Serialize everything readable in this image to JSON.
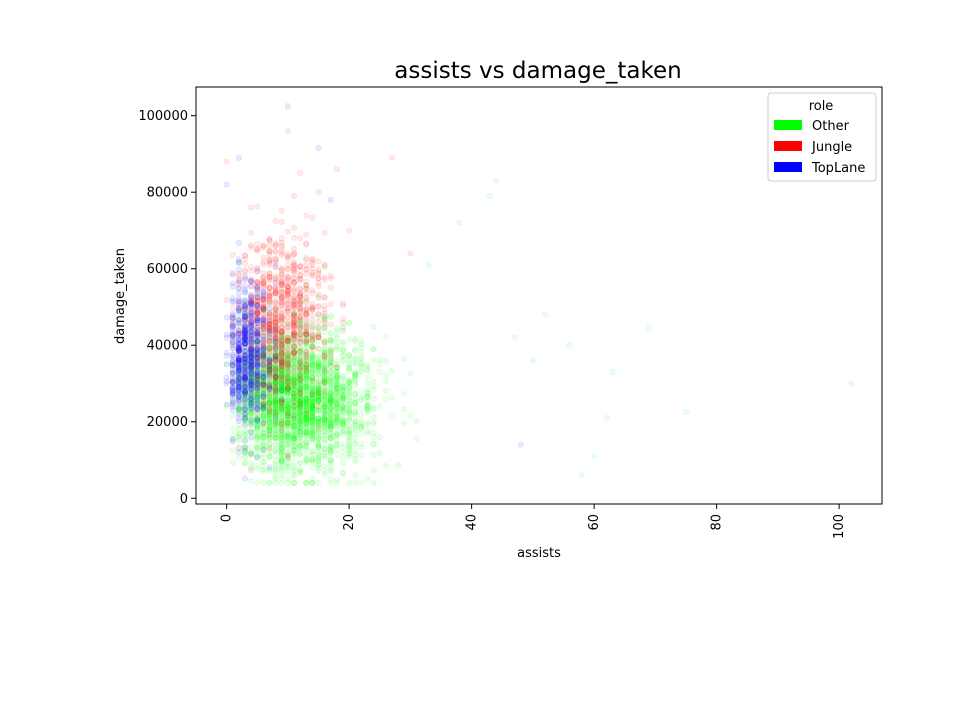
{
  "chart_data": {
    "type": "scatter",
    "title": "assists vs damage_taken",
    "xlabel": "assists",
    "ylabel": "damage_taken",
    "xlim": [
      -5,
      107
    ],
    "ylim": [
      -1500,
      107500
    ],
    "x_ticks": [
      0,
      20,
      40,
      60,
      80,
      100
    ],
    "y_ticks": [
      0,
      20000,
      40000,
      60000,
      80000,
      100000
    ],
    "x_tick_labels": [
      "0",
      "20",
      "40",
      "60",
      "80",
      "100"
    ],
    "y_tick_labels": [
      "0",
      "20000",
      "40000",
      "60000",
      "80000",
      "100000"
    ],
    "grid": false,
    "point_alpha": 0.08,
    "legend": {
      "title": "role",
      "placement": "top-right",
      "entries": [
        {
          "name": "Other",
          "color": "#00ff00"
        },
        {
          "name": "Jungle",
          "color": "#ff0000"
        },
        {
          "name": "TopLane",
          "color": "#0000ff"
        }
      ]
    },
    "series": [
      {
        "name": "Other",
        "color": "#00ff00",
        "distribution": {
          "x_center": 14,
          "x_spread": 11,
          "x_max": 75,
          "y_center": 26000,
          "y_spread": 9000
        },
        "points": [
          [
            69,
            44500
          ],
          [
            75,
            22500
          ],
          [
            102,
            30000
          ],
          [
            63,
            33000
          ],
          [
            58,
            6000
          ],
          [
            60,
            11000
          ],
          [
            52,
            48000
          ],
          [
            47,
            42000
          ],
          [
            43,
            79000
          ],
          [
            44,
            83000
          ],
          [
            38,
            72000
          ],
          [
            56,
            40000
          ],
          [
            62,
            21000
          ],
          [
            50,
            36000
          ],
          [
            33,
            61000
          ]
        ]
      },
      {
        "name": "Jungle",
        "color": "#ff0000",
        "distribution": {
          "x_center": 11,
          "x_spread": 6,
          "x_max": 45,
          "y_center": 47000,
          "y_spread": 11000
        },
        "points": [
          [
            0,
            88000
          ],
          [
            10,
            96000
          ],
          [
            18,
            86000
          ],
          [
            27,
            89000
          ],
          [
            15,
            80000
          ],
          [
            12,
            85000
          ],
          [
            20,
            70000
          ],
          [
            30,
            64000
          ],
          [
            4,
            76000
          ],
          [
            8,
            66000
          ]
        ]
      },
      {
        "name": "TopLane",
        "color": "#0000ff",
        "distribution": {
          "x_center": 4,
          "x_spread": 4,
          "x_max": 30,
          "y_center": 37000,
          "y_spread": 9000
        },
        "points": [
          [
            10,
            102500
          ],
          [
            15,
            91500
          ],
          [
            0,
            82000
          ],
          [
            2,
            89000
          ],
          [
            17,
            78000
          ],
          [
            48,
            14000
          ],
          [
            0,
            35000
          ],
          [
            0,
            30000
          ],
          [
            5,
            41000
          ]
        ]
      }
    ]
  }
}
